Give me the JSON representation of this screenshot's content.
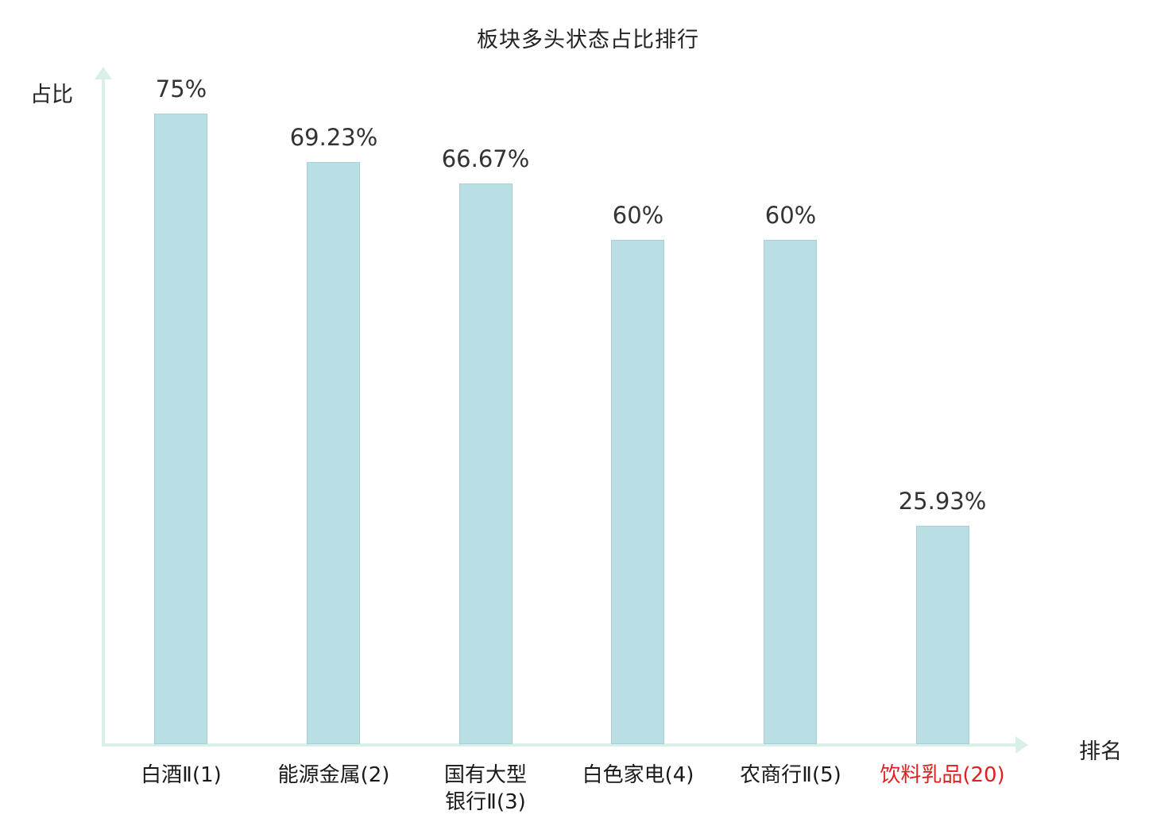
{
  "title": "板块多头状态占比排行",
  "axes": {
    "ylabel": "占比",
    "xlabel": "排名"
  },
  "colors": {
    "bar_fill": "#b9dee3",
    "bar_border": "#a5d2d9",
    "axis": "#d9efe9",
    "text": "#333333",
    "highlight": "#e02020"
  },
  "chart_data": {
    "type": "bar",
    "title": "板块多头状态占比排行",
    "xlabel": "排名",
    "ylabel": "占比",
    "categories": [
      "白酒Ⅱ(1)",
      "能源金属(2)",
      "国有大型\n银行Ⅱ(3)",
      "白色家电(4)",
      "农商行Ⅱ(5)",
      "饮料乳品(20)"
    ],
    "values": [
      75,
      69.23,
      66.67,
      60,
      60,
      25.93
    ],
    "value_labels": [
      "75%",
      "69.23%",
      "66.67%",
      "60%",
      "60%",
      "25.93%"
    ],
    "ylim": [
      0,
      80
    ],
    "highlight_index": 5,
    "grid": false,
    "legend": "none"
  }
}
